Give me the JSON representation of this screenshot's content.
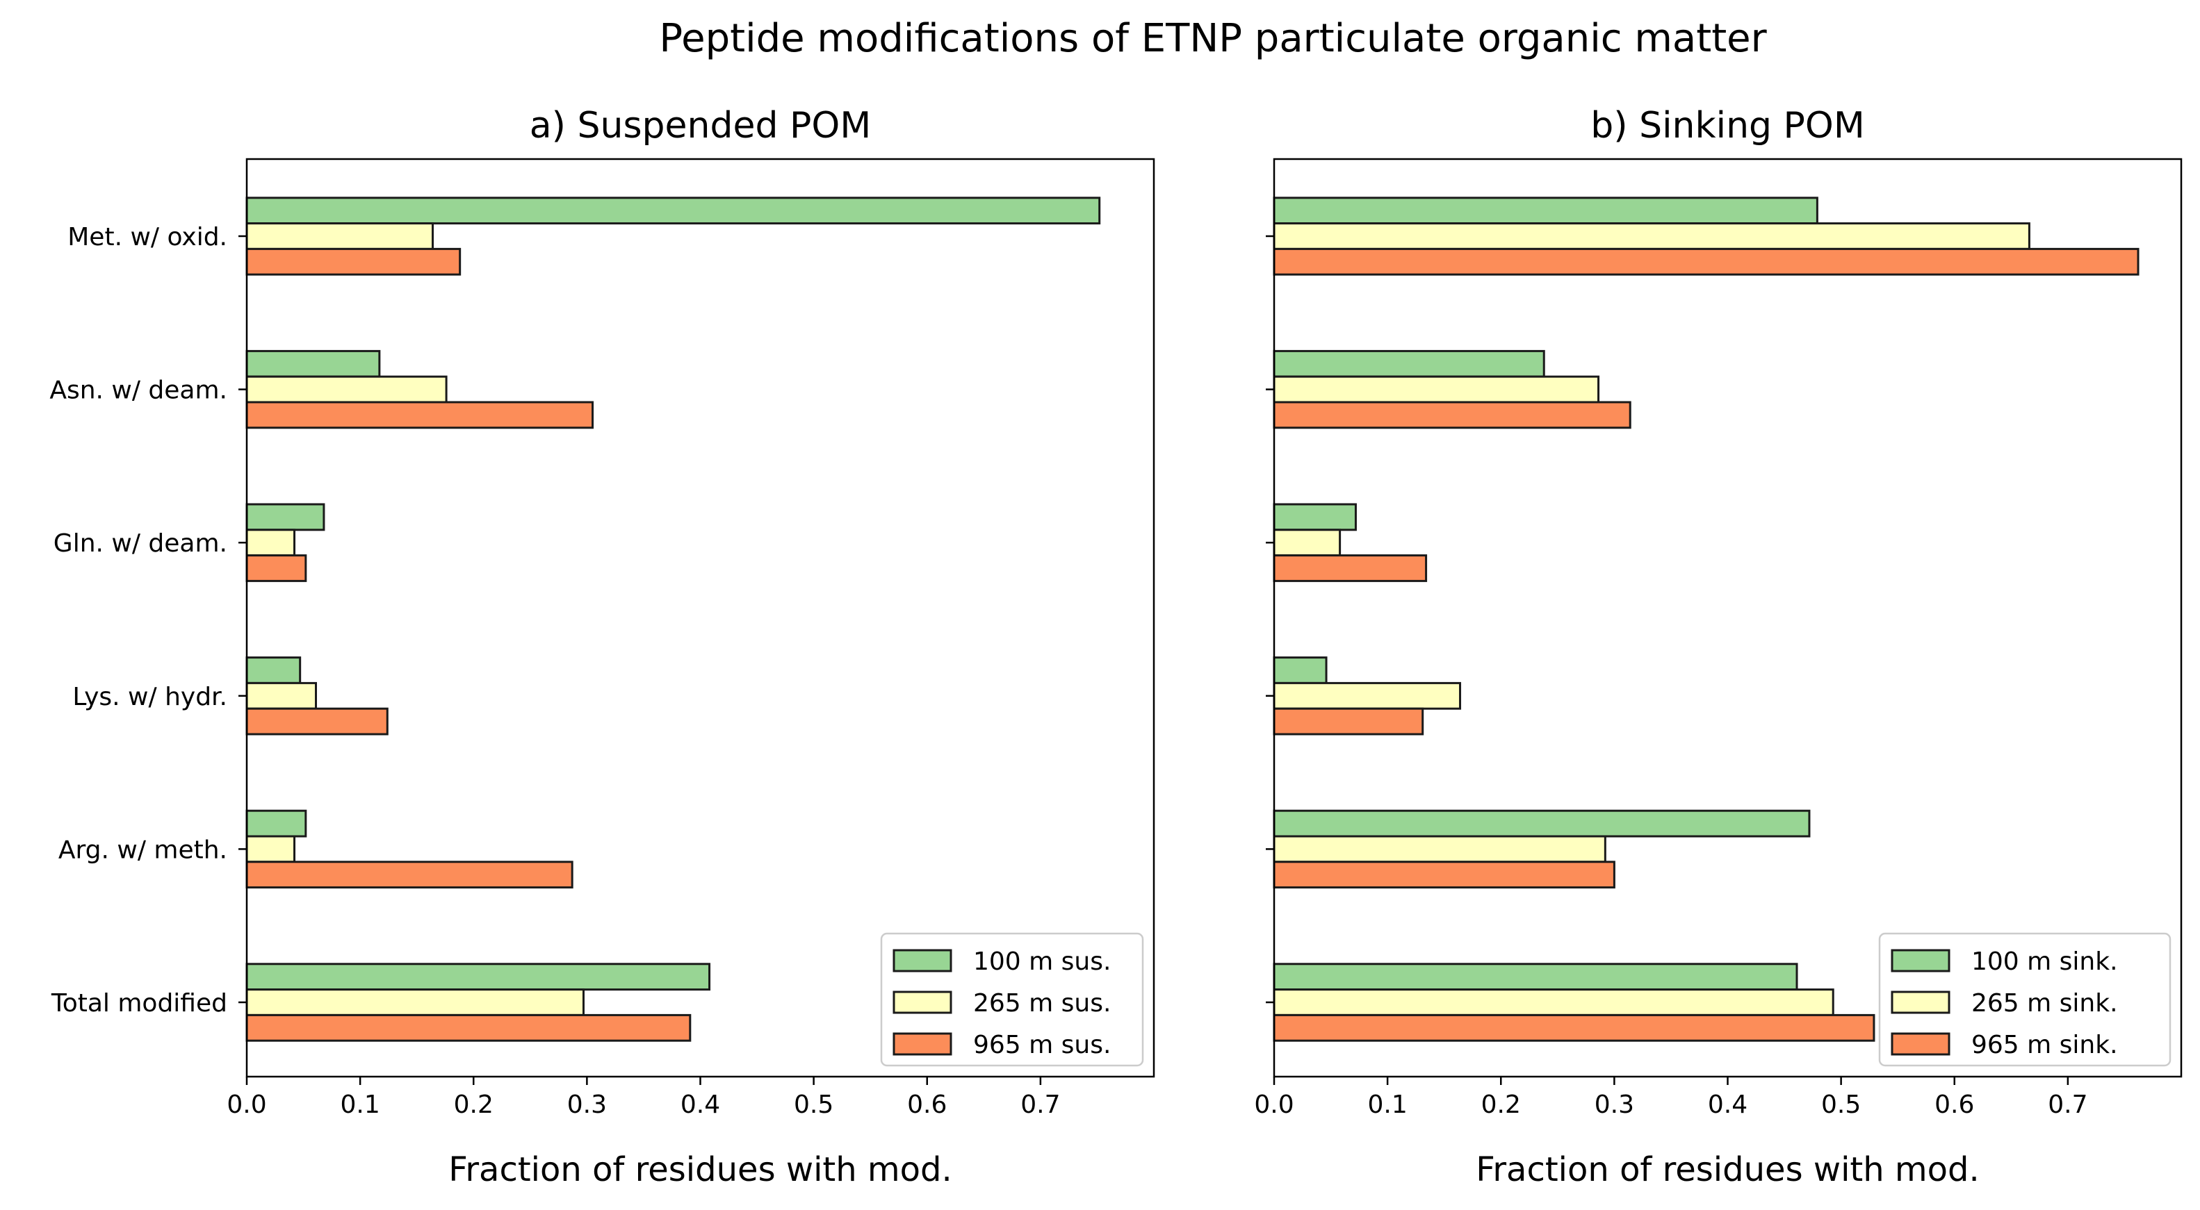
{
  "figure": {
    "suptitle": "Peptide modifications of ETNP particulate organic matter"
  },
  "colors": {
    "100m": "#98d594",
    "265m": "#ffffc0",
    "965m": "#fc8d59",
    "edge": "#1a1a1a"
  },
  "chart_data": [
    {
      "type": "bar",
      "orientation": "horizontal",
      "title": "a) Suspended POM",
      "xlabel": "Fraction of residues with mod.",
      "ylabel": "",
      "xlim": [
        0,
        0.8
      ],
      "xticks": [
        "0.0",
        "0.1",
        "0.2",
        "0.3",
        "0.4",
        "0.5",
        "0.6",
        "0.7"
      ],
      "grid": false,
      "legend_position": "lower-right",
      "categories": [
        "Met. w/ oxid.",
        "Asn. w/ deam.",
        "Gln. w/ deam.",
        "Lys. w/ hydr.",
        "Arg. w/ meth.",
        "Total modified"
      ],
      "series": [
        {
          "name": "100 m sus.",
          "color_key": "100m",
          "values": [
            0.752,
            0.117,
            0.068,
            0.047,
            0.052,
            0.408
          ]
        },
        {
          "name": "265 m sus.",
          "color_key": "265m",
          "values": [
            0.164,
            0.176,
            0.042,
            0.061,
            0.042,
            0.297
          ]
        },
        {
          "name": "965 m sus.",
          "color_key": "965m",
          "values": [
            0.188,
            0.305,
            0.052,
            0.124,
            0.287,
            0.391
          ]
        }
      ]
    },
    {
      "type": "bar",
      "orientation": "horizontal",
      "title": "b) Sinking POM",
      "xlabel": "Fraction of residues with mod.",
      "ylabel": "",
      "xlim": [
        0,
        0.8
      ],
      "xticks": [
        "0.0",
        "0.1",
        "0.2",
        "0.3",
        "0.4",
        "0.5",
        "0.6",
        "0.7"
      ],
      "grid": false,
      "legend_position": "lower-right",
      "categories": [
        "Met. w/ oxid.",
        "Asn. w/ deam.",
        "Gln. w/ deam.",
        "Lys. w/ hydr.",
        "Arg. w/ meth.",
        "Total modified"
      ],
      "series": [
        {
          "name": "100 m sink.",
          "color_key": "100m",
          "values": [
            0.479,
            0.238,
            0.072,
            0.046,
            0.472,
            0.461
          ]
        },
        {
          "name": "265 m sink.",
          "color_key": "265m",
          "values": [
            0.666,
            0.286,
            0.058,
            0.164,
            0.292,
            0.493
          ]
        },
        {
          "name": "965 m sink.",
          "color_key": "965m",
          "values": [
            0.762,
            0.314,
            0.134,
            0.131,
            0.3,
            0.529
          ]
        }
      ]
    }
  ]
}
